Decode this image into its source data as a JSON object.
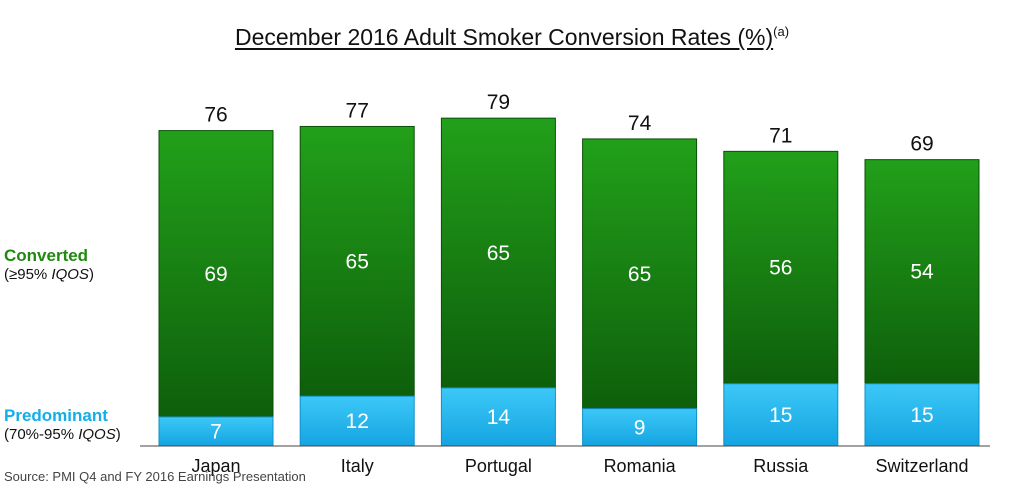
{
  "chart_data": {
    "type": "bar",
    "stacked": true,
    "title": "December 2016 Adult Smoker Conversion Rates (%)",
    "title_note": "(a)",
    "categories": [
      "Japan",
      "Italy",
      "Portugal",
      "Romania",
      "Russia",
      "Switzerland"
    ],
    "series": [
      {
        "name": "Predominant",
        "values": [
          7,
          12,
          14,
          9,
          15,
          15
        ],
        "color": "#22b8f0"
      },
      {
        "name": "Converted",
        "values": [
          69,
          65,
          65,
          65,
          56,
          54
        ],
        "color": "#167a12"
      }
    ],
    "totals": [
      76,
      77,
      79,
      74,
      71,
      69
    ],
    "legend": {
      "converted_title": "Converted",
      "converted_sub_prefix": "(≥95% ",
      "converted_sub_italic": "IQOS",
      "converted_sub_suffix": ")",
      "predominant_title": "Predominant",
      "predominant_sub_prefix": "(70%-95% ",
      "predominant_sub_italic": "IQOS",
      "predominant_sub_suffix": ")"
    },
    "source": "Source: PMI Q4 and FY 2016 Earnings Presentation"
  }
}
